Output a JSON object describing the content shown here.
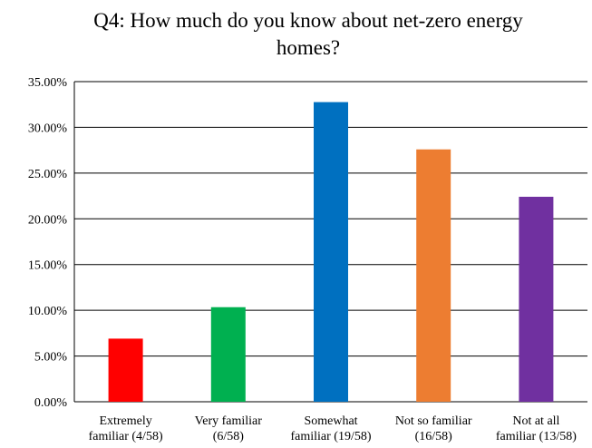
{
  "chart_data": {
    "type": "bar",
    "title_lines": [
      "Q4: How much do you know about net-zero energy",
      "homes?"
    ],
    "categories": [
      [
        "Extremely",
        "familiar (4/58)"
      ],
      [
        "Very familiar",
        "(6/58)"
      ],
      [
        "Somewhat",
        "familiar (19/58)"
      ],
      [
        "Not so familiar",
        "(16/58)"
      ],
      [
        "Not at all",
        "familiar (13/58)"
      ]
    ],
    "values": [
      6.9,
      10.34,
      32.76,
      27.59,
      22.41
    ],
    "colors": [
      "#ff0000",
      "#00b050",
      "#0070c0",
      "#ed7d31",
      "#7030a0"
    ],
    "yticks": [
      "0.00%",
      "5.00%",
      "10.00%",
      "15.00%",
      "20.00%",
      "25.00%",
      "30.00%",
      "35.00%"
    ],
    "ylim": [
      0,
      35
    ],
    "grid": true,
    "legend": "none"
  }
}
